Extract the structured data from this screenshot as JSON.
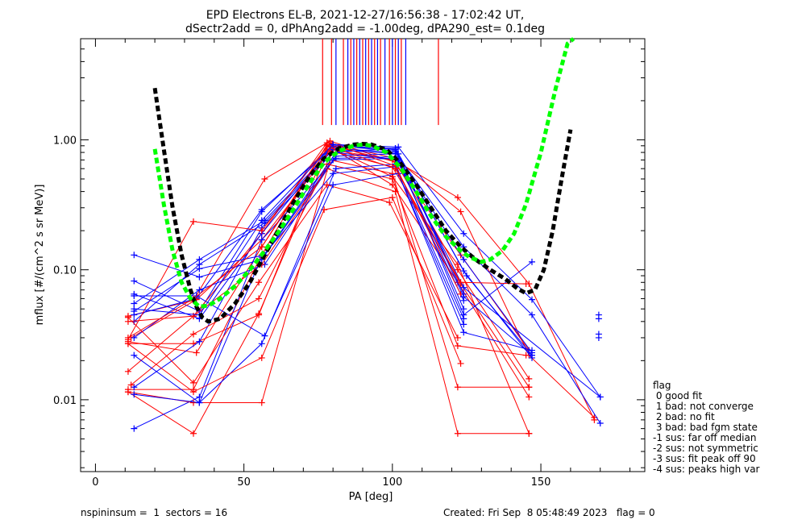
{
  "title_line1": "EPD Electrons EL-B, 2021-12-27/16:56:38 - 17:02:42 UT,",
  "title_line2": "dSectr2add = 0, dPhAng2add = -1.00deg, dPA290_est=   0.1deg",
  "footer_left": "nspininsum =  1  sectors = 16",
  "footer_right": "Created: Fri Sep  8 05:48:49 2023   flag = 0",
  "legend": {
    "title": "flag",
    "items": [
      " 0 good fit",
      " 1 bad: not converge",
      " 2 bad: no fit",
      " 3 bad: bad fgm state",
      "-1 sus: far off median",
      "-2 sus: not symmetric",
      "-3 sus: fit peak off 90",
      "-4 sus: peaks high var"
    ]
  },
  "colors": {
    "red": "#ff0000",
    "blue": "#0000ff",
    "fit_black": "#000000",
    "fit_green": "#00ff00",
    "axis": "#000000"
  },
  "chart_data": {
    "type": "line",
    "xlabel": "PA [deg]",
    "ylabel": "mflux [#/(cm^2 s sr MeV)]",
    "xlim": [
      -5,
      185
    ],
    "ylim": [
      0.0028,
      6.0
    ],
    "y_scale": "log",
    "x_ticks": [
      0,
      50,
      100,
      150
    ],
    "y_ticks": [
      {
        "v": 0.01,
        "label": "0.01"
      },
      {
        "v": 0.1,
        "label": "0.10"
      },
      {
        "v": 1.0,
        "label": "1.00"
      }
    ],
    "ticks_ticklines": [
      76.5,
      79.5,
      81.0,
      83.5,
      85.0,
      86.0,
      87.0,
      88.0,
      89.0,
      90.0,
      91.0,
      92.0,
      93.0,
      94.0,
      95.0,
      96.0,
      97.5,
      99.0,
      100.0,
      101.0,
      102.0,
      103.0,
      104.5,
      115.5
    ],
    "series": [
      {
        "color": "red",
        "x": [
          11,
          33,
          57,
          79,
          103,
          122,
          146,
          168
        ],
        "y": [
          0.044,
          0.058,
          0.5,
          0.98,
          0.65,
          0.36,
          0.078,
          0.007
        ]
      },
      {
        "color": "blue",
        "x": [
          13,
          35,
          56,
          80,
          102,
          124,
          147,
          170
        ],
        "y": [
          0.082,
          0.048,
          0.28,
          0.92,
          0.88,
          0.19,
          0.059,
          0.0105
        ]
      },
      {
        "color": "red",
        "x": [
          11,
          33,
          56,
          78,
          101,
          123,
          146,
          168
        ],
        "y": [
          0.0165,
          0.044,
          0.19,
          0.95,
          0.72,
          0.28,
          0.022,
          0.0073
        ]
      },
      {
        "color": "blue",
        "x": [
          13,
          35,
          57,
          80,
          101,
          124,
          147,
          170
        ],
        "y": [
          0.055,
          0.12,
          0.24,
          0.86,
          0.8,
          0.15,
          0.045,
          0.0066
        ]
      },
      {
        "color": "red",
        "x": [
          11,
          34,
          56,
          78,
          100,
          123,
          146
        ],
        "y": [
          0.028,
          0.023,
          0.15,
          0.85,
          0.7,
          0.13,
          0.024
        ]
      },
      {
        "color": "blue",
        "x": [
          13,
          35,
          56,
          80,
          101,
          124,
          147
        ],
        "y": [
          0.065,
          0.042,
          0.19,
          0.9,
          0.82,
          0.12,
          0.023
        ]
      },
      {
        "color": "red",
        "x": [
          11,
          33,
          55,
          78,
          100,
          122,
          146
        ],
        "y": [
          0.027,
          0.027,
          0.045,
          0.9,
          0.52,
          0.11,
          0.0055
        ]
      },
      {
        "color": "blue",
        "x": [
          13,
          34,
          56,
          80,
          101,
          124,
          147
        ],
        "y": [
          0.045,
          0.06,
          0.29,
          0.88,
          0.86,
          0.098,
          0.021
        ]
      },
      {
        "color": "red",
        "x": [
          11,
          33,
          56,
          78,
          101,
          122,
          146
        ],
        "y": [
          0.012,
          0.012,
          0.13,
          0.92,
          0.68,
          0.1,
          0.0145
        ]
      },
      {
        "color": "blue",
        "x": [
          13,
          35,
          57,
          80,
          102,
          125,
          147
        ],
        "y": [
          0.04,
          0.11,
          0.23,
          0.84,
          0.78,
          0.09,
          0.022
        ]
      },
      {
        "color": "red",
        "x": [
          11,
          33,
          55,
          79,
          100,
          122,
          146
        ],
        "y": [
          0.0115,
          0.0055,
          0.046,
          0.88,
          0.45,
          0.08,
          0.0105
        ]
      },
      {
        "color": "blue",
        "x": [
          13,
          35,
          56,
          80,
          101,
          124
        ],
        "y": [
          0.0125,
          0.028,
          0.21,
          0.8,
          0.86,
          0.065
        ]
      },
      {
        "color": "red",
        "x": [
          12,
          34,
          56,
          79,
          100,
          123,
          146
        ],
        "y": [
          0.03,
          0.059,
          0.17,
          0.82,
          0.62,
          0.078,
          0.0125
        ]
      },
      {
        "color": "blue",
        "x": [
          13,
          35,
          56,
          81,
          101,
          124
        ],
        "y": [
          0.006,
          0.0105,
          0.17,
          0.72,
          0.74,
          0.058
        ]
      },
      {
        "color": "red",
        "x": [
          11,
          33,
          56,
          79,
          100,
          122,
          146
        ],
        "y": [
          0.0115,
          0.0095,
          0.0095,
          0.7,
          0.55,
          0.0125,
          0.0125
        ]
      },
      {
        "color": "blue",
        "x": [
          13,
          35,
          57,
          81,
          101,
          124
        ],
        "y": [
          0.03,
          0.07,
          0.11,
          0.75,
          0.78,
          0.05
        ]
      },
      {
        "color": "red",
        "x": [
          11,
          33,
          56,
          78,
          101,
          122,
          146
        ],
        "y": [
          0.04,
          0.044,
          0.11,
          0.6,
          0.4,
          0.0055,
          0.0055
        ]
      },
      {
        "color": "blue",
        "x": [
          13,
          35,
          56,
          80,
          102,
          124,
          147
        ],
        "y": [
          0.13,
          0.088,
          0.12,
          0.7,
          0.72,
          0.045,
          0.115
        ]
      },
      {
        "color": "red",
        "x": [
          12,
          33,
          55,
          78,
          100,
          122,
          145
        ],
        "y": [
          0.013,
          0.032,
          0.06,
          0.65,
          0.5,
          0.026,
          0.022
        ]
      },
      {
        "color": "blue",
        "x": [
          13,
          35,
          56,
          81,
          101,
          124
        ],
        "y": [
          0.022,
          0.0095,
          0.027,
          0.6,
          0.65,
          0.042
        ]
      },
      {
        "color": "red",
        "x": [
          11,
          33,
          55,
          78,
          99,
          122
        ],
        "y": [
          0.043,
          0.0135,
          0.08,
          0.45,
          0.33,
          0.03
        ]
      },
      {
        "color": "blue",
        "x": [
          13,
          35,
          56,
          80,
          101,
          124
        ],
        "y": [
          0.011,
          0.0095,
          0.125,
          0.55,
          0.62,
          0.038
        ]
      },
      {
        "color": "red",
        "x": [
          11,
          33,
          56,
          77,
          100,
          123
        ],
        "y": [
          0.027,
          0.0115,
          0.021,
          0.29,
          0.36,
          0.019
        ]
      },
      {
        "color": "blue",
        "x": [
          13,
          34,
          57,
          80,
          102,
          124,
          147
        ],
        "y": [
          0.063,
          0.063,
          0.031,
          0.45,
          0.55,
          0.033,
          0.024
        ]
      },
      {
        "color": "red",
        "x": [
          11,
          33,
          56,
          79,
          101,
          123
        ],
        "y": [
          0.029,
          0.235,
          0.2,
          0.95,
          0.63,
          0.065
        ]
      },
      {
        "color": "blue",
        "x": [
          13,
          35,
          57,
          81,
          102,
          124,
          170
        ],
        "y": [
          0.048,
          0.102,
          0.13,
          0.8,
          0.7,
          0.073,
          0.0105
        ]
      },
      {
        "color": "red",
        "x": [
          11,
          33,
          56,
          78,
          101,
          123,
          145
        ],
        "y": [
          0.03,
          0.06,
          0.15,
          0.9,
          0.6,
          0.08,
          0.078
        ]
      },
      {
        "color": "blue",
        "x": [
          13,
          35,
          56,
          80,
          101,
          124,
          147
        ],
        "y": [
          0.05,
          0.045,
          0.24,
          0.92,
          0.84,
          0.062,
          0.022
        ]
      }
    ],
    "isolated_points": [
      {
        "color": "blue",
        "x": 169.5,
        "y": 0.045
      },
      {
        "color": "blue",
        "x": 169.5,
        "y": 0.042
      },
      {
        "color": "blue",
        "x": 169.5,
        "y": 0.032
      },
      {
        "color": "blue",
        "x": 169.5,
        "y": 0.03
      }
    ],
    "fit_curves": [
      {
        "color": "fit_black",
        "x": [
          20,
          23,
          26,
          29,
          32,
          34,
          36,
          38,
          42,
          47,
          52,
          57,
          62,
          67,
          72,
          77,
          82,
          87,
          90,
          93,
          98,
          103,
          108,
          113,
          118,
          123,
          128,
          133,
          138,
          142,
          145,
          148,
          151,
          154,
          157,
          160
        ],
        "y": [
          2.5,
          0.85,
          0.3,
          0.13,
          0.07,
          0.052,
          0.043,
          0.04,
          0.042,
          0.055,
          0.08,
          0.13,
          0.21,
          0.34,
          0.52,
          0.72,
          0.86,
          0.92,
          0.93,
          0.92,
          0.84,
          0.65,
          0.45,
          0.3,
          0.2,
          0.15,
          0.12,
          0.1,
          0.085,
          0.072,
          0.066,
          0.07,
          0.1,
          0.2,
          0.5,
          1.2
        ]
      },
      {
        "color": "fit_green",
        "x": [
          20,
          23,
          26,
          29,
          32,
          35,
          38,
          42,
          47,
          52,
          57,
          62,
          67,
          72,
          77,
          82,
          87,
          90,
          93,
          98,
          103,
          108,
          113,
          118,
          123,
          126,
          130,
          133,
          137,
          141,
          145,
          150,
          155,
          159,
          161
        ],
        "y": [
          0.85,
          0.32,
          0.14,
          0.08,
          0.06,
          0.052,
          0.053,
          0.06,
          0.075,
          0.1,
          0.14,
          0.2,
          0.3,
          0.46,
          0.67,
          0.82,
          0.9,
          0.92,
          0.9,
          0.8,
          0.6,
          0.4,
          0.26,
          0.18,
          0.14,
          0.125,
          0.115,
          0.12,
          0.14,
          0.19,
          0.32,
          0.8,
          2.5,
          5.5,
          6.0
        ]
      }
    ]
  }
}
